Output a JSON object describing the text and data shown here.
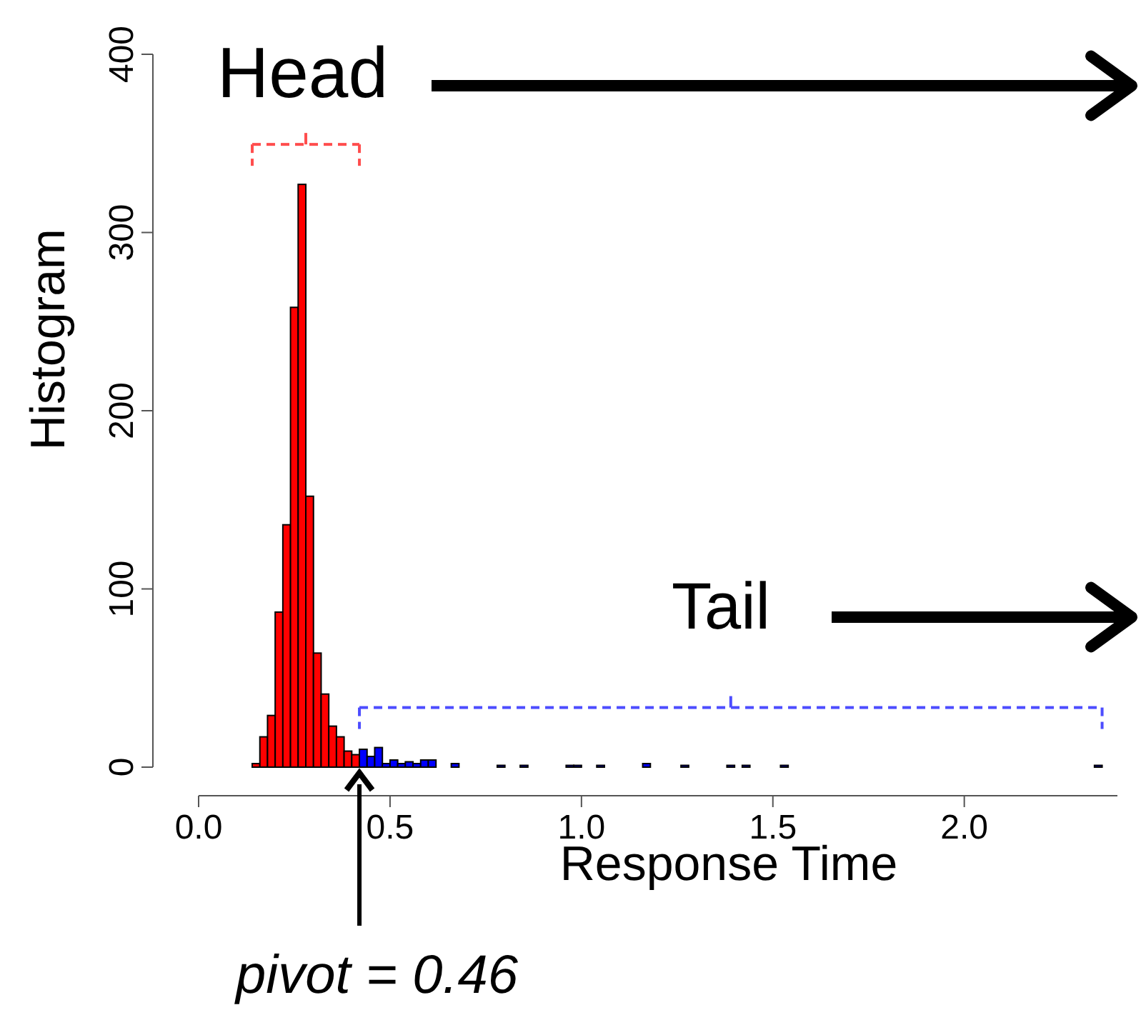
{
  "chart_data": {
    "type": "histogram",
    "xlabel": "Response Time",
    "ylabel": "Histogram",
    "bins": [
      0.14,
      0.16,
      0.18,
      0.2,
      0.22,
      0.24,
      0.26,
      0.28,
      0.3,
      0.32,
      0.34,
      0.36,
      0.38,
      0.4,
      0.42,
      0.44,
      0.46,
      0.48,
      0.5,
      0.52,
      0.54,
      0.56,
      0.58,
      0.6,
      0.62,
      0.64,
      0.66,
      0.68,
      0.7,
      0.72,
      0.74,
      0.76,
      0.78,
      0.8,
      0.82,
      0.84,
      0.86,
      0.88,
      0.9,
      0.92,
      0.94,
      0.96,
      0.98,
      1.0,
      1.02,
      1.04,
      1.06,
      1.08,
      1.1,
      1.12,
      1.14,
      1.16,
      1.18,
      1.2,
      1.22,
      1.24,
      1.26,
      1.28,
      1.3,
      1.32,
      1.34,
      1.36,
      1.38,
      1.4,
      1.42,
      1.44,
      1.46,
      1.48,
      1.5,
      1.52,
      1.54,
      1.56,
      1.58,
      1.6,
      1.62,
      1.64,
      1.66,
      1.68,
      1.7,
      1.72,
      1.74,
      1.76,
      1.78,
      1.8,
      1.82,
      1.84,
      1.86,
      1.88,
      1.9,
      1.92,
      1.94,
      1.96,
      1.98,
      2.0,
      2.02,
      2.04,
      2.06,
      2.08,
      2.1,
      2.12,
      2.14,
      2.16,
      2.18,
      2.2,
      2.22,
      2.24,
      2.26,
      2.28,
      2.3,
      2.32,
      2.34,
      2.36
    ],
    "values": [
      2,
      17,
      29,
      87,
      136,
      258,
      327,
      152,
      64,
      41,
      23,
      17,
      9,
      7,
      10,
      6,
      11,
      2,
      4,
      2,
      3,
      2,
      4,
      4,
      0,
      0,
      2,
      0,
      0,
      0,
      0,
      0,
      1,
      0,
      0,
      1,
      0,
      0,
      0,
      0,
      0,
      1,
      1,
      0,
      0,
      1,
      0,
      0,
      0,
      0,
      0,
      2,
      0,
      0,
      0,
      0,
      1,
      0,
      0,
      0,
      0,
      0,
      1,
      0,
      1,
      0,
      0,
      0,
      0,
      1,
      0,
      0,
      0,
      0,
      0,
      0,
      0,
      0,
      0,
      0,
      0,
      0,
      0,
      0,
      0,
      0,
      0,
      0,
      0,
      0,
      0,
      0,
      0,
      0,
      0,
      0,
      0,
      0,
      0,
      0,
      0,
      0,
      0,
      0,
      0,
      0,
      0,
      0,
      0,
      0,
      1
    ],
    "colors": [
      "#ff0000",
      "#ff0000",
      "#ff0000",
      "#ff0000",
      "#ff0000",
      "#ff0000",
      "#ff0000",
      "#ff0000",
      "#ff0000",
      "#ff0000",
      "#ff0000",
      "#ff0000",
      "#ff0000",
      "#ff0000",
      "#0000ff",
      "#0000ff",
      "#0000ff",
      "#0000ff",
      "#0000ff",
      "#0000ff",
      "#0000ff",
      "#0000ff",
      "#0000ff",
      "#0000ff",
      "#0000ff",
      "#0000ff",
      "#0000ff",
      "#0000ff",
      "#0000ff",
      "#0000ff",
      "#0000ff",
      "#0000ff",
      "#0000ff",
      "#0000ff",
      "#0000ff",
      "#0000ff",
      "#0000ff",
      "#0000ff",
      "#0000ff",
      "#0000ff",
      "#0000ff",
      "#0000ff",
      "#0000ff",
      "#0000ff",
      "#0000ff",
      "#0000ff",
      "#0000ff",
      "#0000ff",
      "#0000ff",
      "#0000ff",
      "#0000ff",
      "#0000ff",
      "#0000ff",
      "#0000ff",
      "#0000ff",
      "#0000ff",
      "#0000ff",
      "#0000ff",
      "#0000ff",
      "#0000ff",
      "#0000ff",
      "#0000ff",
      "#0000ff",
      "#0000ff",
      "#0000ff",
      "#0000ff",
      "#0000ff",
      "#0000ff",
      "#0000ff",
      "#0000ff",
      "#0000ff",
      "#0000ff",
      "#0000ff",
      "#0000ff",
      "#0000ff",
      "#0000ff",
      "#0000ff",
      "#0000ff",
      "#0000ff",
      "#0000ff",
      "#0000ff",
      "#0000ff",
      "#0000ff",
      "#0000ff",
      "#0000ff",
      "#0000ff",
      "#0000ff",
      "#0000ff",
      "#0000ff",
      "#0000ff",
      "#0000ff",
      "#0000ff",
      "#0000ff",
      "#0000ff",
      "#0000ff",
      "#0000ff",
      "#0000ff",
      "#0000ff",
      "#0000ff",
      "#0000ff",
      "#0000ff",
      "#0000ff",
      "#0000ff",
      "#0000ff",
      "#0000ff",
      "#0000ff",
      "#0000ff",
      "#0000ff",
      "#0000ff",
      "#0000ff",
      "#0000ff"
    ],
    "xlim": [
      0,
      2.4
    ],
    "ylim": [
      0,
      400
    ],
    "xticks": [
      {
        "value": 0,
        "label": "0.0"
      },
      0.5,
      {
        "value": 1,
        "label": "1.0"
      },
      1.5,
      {
        "value": 2,
        "label": "2.0"
      }
    ],
    "yticks": [
      0,
      100,
      200,
      300,
      400
    ],
    "annotations": [
      "Head",
      "Tail",
      "pivot = 0.46"
    ]
  }
}
